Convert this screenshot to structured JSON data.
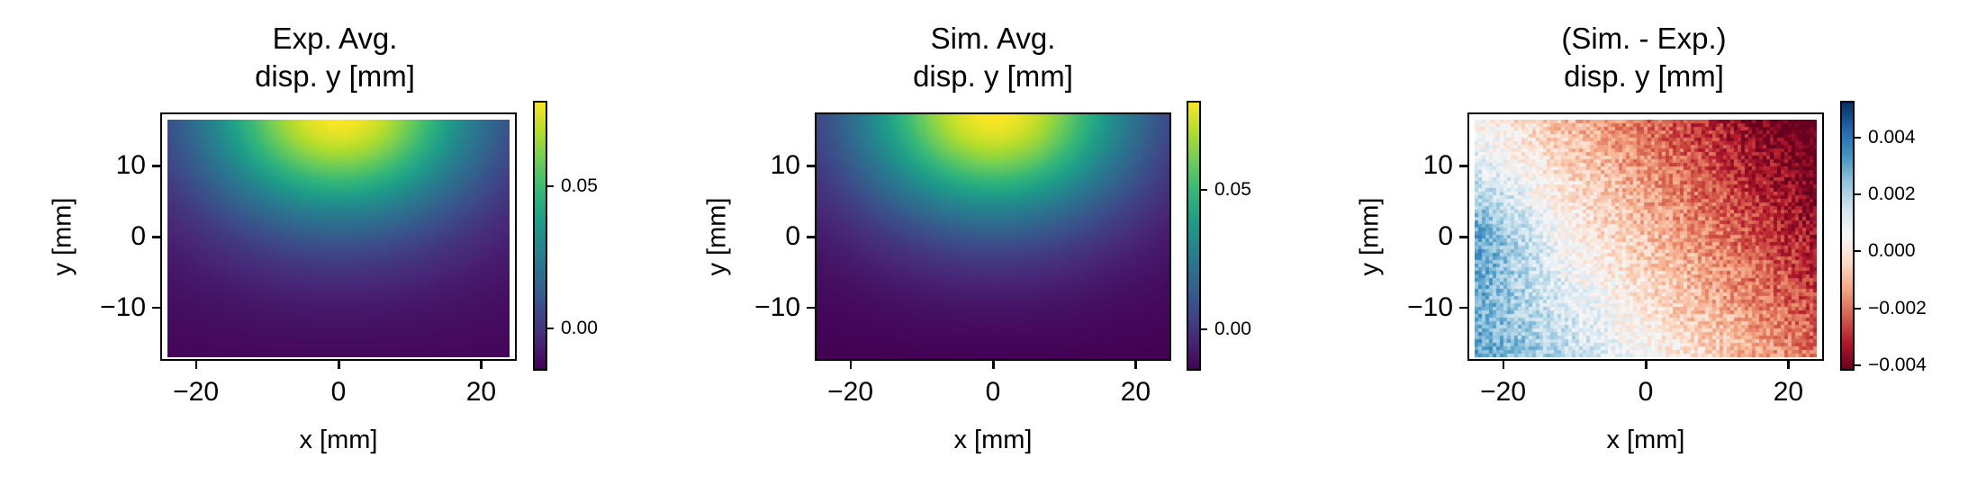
{
  "chart_data": [
    {
      "type": "heatmap",
      "title": "Exp. Avg.\ndisp. y [mm]",
      "title_lines": [
        "Exp. Avg.",
        "disp. y [mm]"
      ],
      "xlabel": "x [mm]",
      "ylabel": "y [mm]",
      "xlim": [
        -25,
        25
      ],
      "ylim": [
        -17.5,
        17.5
      ],
      "xticks": [
        -20,
        0,
        20
      ],
      "xtick_labels": [
        "−20",
        "0",
        "20"
      ],
      "yticks": [
        10,
        0,
        -10
      ],
      "ytick_labels": [
        "10",
        "0",
        "−10"
      ],
      "data_extent": {
        "x": [
          -24,
          24
        ],
        "y": [
          -17,
          16.5
        ]
      },
      "colormap": "viridis",
      "color_range": [
        -0.015,
        0.08
      ],
      "field": "exp",
      "colorbar_ticks": [
        0.05,
        0.0
      ],
      "colorbar_tick_labels": [
        "0.05",
        "0.00"
      ]
    },
    {
      "type": "heatmap",
      "title": "Sim. Avg.\ndisp. y [mm]",
      "title_lines": [
        "Sim. Avg.",
        "disp. y [mm]"
      ],
      "xlabel": "x [mm]",
      "ylabel": "y [mm]",
      "xlim": [
        -25,
        25
      ],
      "ylim": [
        -17.5,
        17.5
      ],
      "xticks": [
        -20,
        0,
        20
      ],
      "xtick_labels": [
        "−20",
        "0",
        "20"
      ],
      "yticks": [
        10,
        0,
        -10
      ],
      "ytick_labels": [
        "10",
        "0",
        "−10"
      ],
      "data_extent": {
        "x": [
          -25,
          25
        ],
        "y": [
          -17.5,
          17.5
        ]
      },
      "colormap": "viridis",
      "color_range": [
        -0.015,
        0.082
      ],
      "field": "sim",
      "colorbar_ticks": [
        0.05,
        0.0
      ],
      "colorbar_tick_labels": [
        "0.05",
        "0.00"
      ]
    },
    {
      "type": "heatmap",
      "title": "(Sim. - Exp.)\ndisp. y [mm]",
      "title_lines": [
        "(Sim. - Exp.)",
        "disp. y [mm]"
      ],
      "xlabel": "x [mm]",
      "ylabel": "y [mm]",
      "xlim": [
        -25,
        25
      ],
      "ylim": [
        -17.5,
        17.5
      ],
      "xticks": [
        -20,
        0,
        20
      ],
      "xtick_labels": [
        "−20",
        "0",
        "20"
      ],
      "yticks": [
        10,
        0,
        -10
      ],
      "ytick_labels": [
        "10",
        "0",
        "−10"
      ],
      "data_extent": {
        "x": [
          -24,
          24
        ],
        "y": [
          -17,
          16.5
        ]
      },
      "colormap": "RdBu",
      "color_range": [
        -0.0042,
        0.0053
      ],
      "field": "diff",
      "colorbar_ticks": [
        0.004,
        0.002,
        0.0,
        -0.002,
        -0.004
      ],
      "colorbar_tick_labels": [
        "0.004",
        "0.002",
        "0.000",
        "−0.002",
        "−0.004"
      ]
    }
  ]
}
